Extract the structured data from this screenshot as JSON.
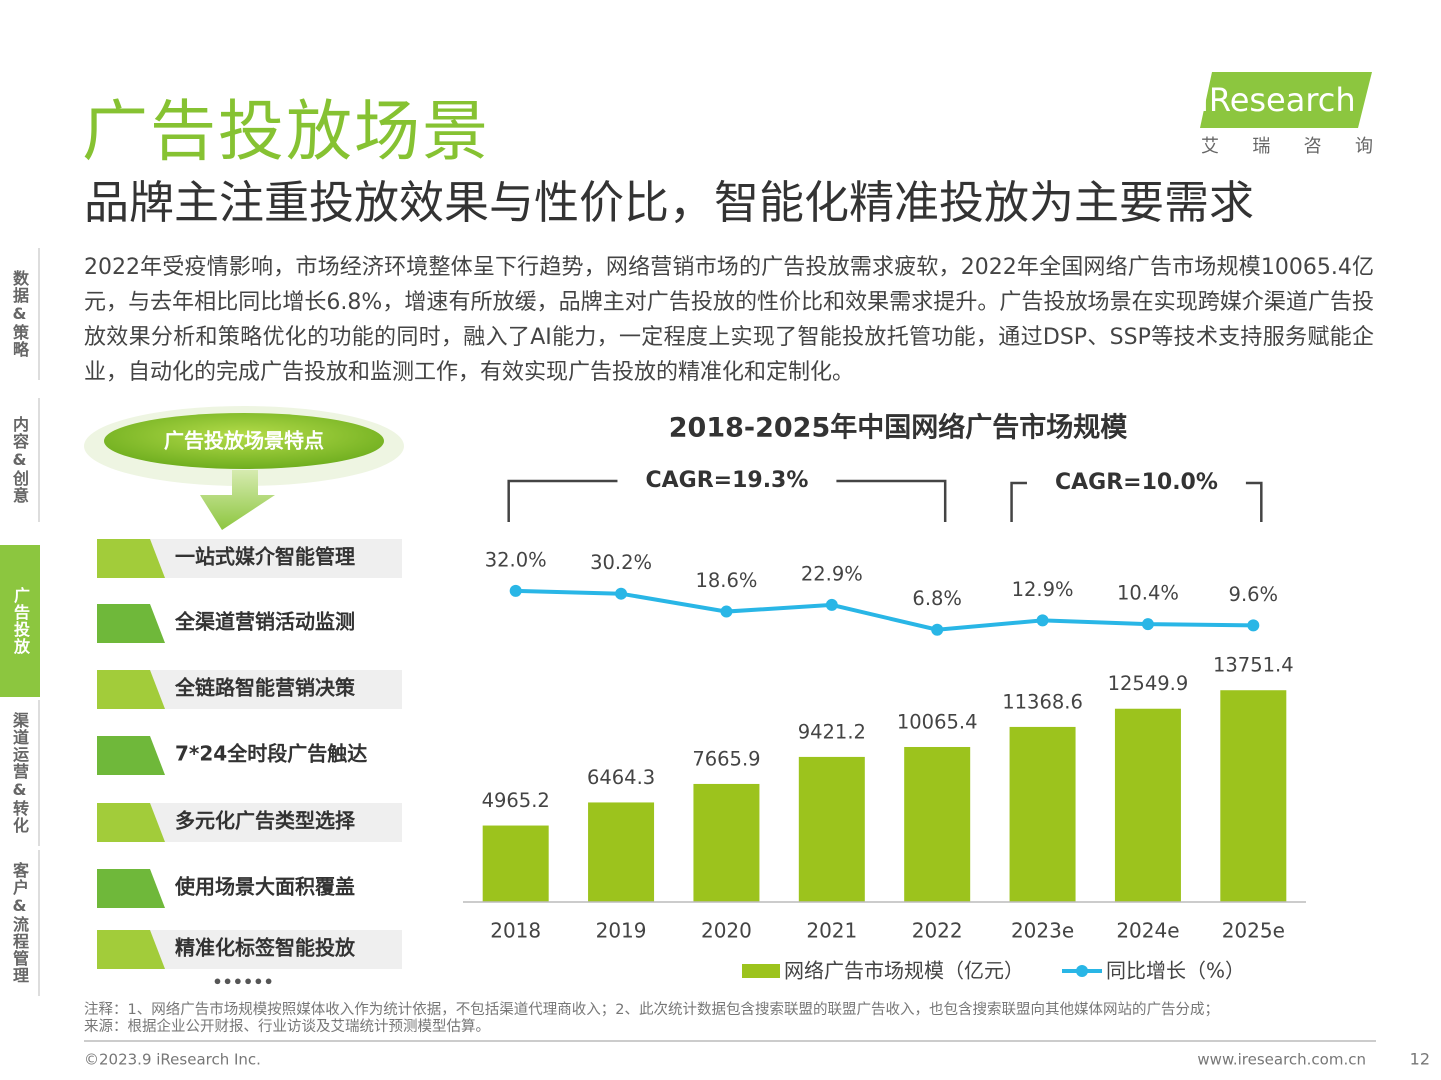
{
  "header": {
    "title": "广告投放场景",
    "subtitle": "品牌主注重投放效果与性价比，智能化精准投放为主要需求",
    "logo": "iResearch",
    "logo_cn": "艾 瑞 咨 询"
  },
  "sidebar": {
    "items": [
      "数据&策略",
      "内容&创意",
      "广告投放",
      "渠道运营&转化",
      "客户&流程管理"
    ],
    "active": 2
  },
  "body": "2022年受疫情影响，市场经济环境整体呈下行趋势，网络营销市场的广告投放需求疲软，2022年全国网络广告市场规模10065.4亿元，与去年相比同比增长6.8%，增速有所放缓，品牌主对广告投放的性价比和效果需求提升。广告投放场景在实现跨媒介渠道广告投放效果分析和策略优化的功能的同时，融入了AI能力，一定程度上实现了智能投放托管功能，通过DSP、SSP等技术支持服务赋能企业，自动化的完成广告投放和监测工作，有效实现广告投放的精准化和定制化。",
  "features": {
    "title": "广告投放场景特点",
    "items": [
      "一站式媒介智能管理",
      "全渠道营销活动监测",
      "全链路智能营销决策",
      "7*24全时段广告触达",
      "多元化广告类型选择",
      "使用场景大面积覆盖",
      "精准化标签智能投放"
    ],
    "more": "••••••"
  },
  "chart_data": {
    "type": "bar_line",
    "title": "2018-2025年中国网络广告市场规模",
    "annotations": [
      "CAGR=19.3%",
      "CAGR=10.0%"
    ],
    "categories": [
      "2018",
      "2019",
      "2020",
      "2021",
      "2022",
      "2023e",
      "2024e",
      "2025e"
    ],
    "series": [
      {
        "name": "网络广告市场规模（亿元）",
        "type": "bar",
        "color": "#9cc31d",
        "values": [
          4965.2,
          6464.3,
          7665.9,
          9421.2,
          10065.4,
          11368.6,
          12549.9,
          13751.4
        ]
      },
      {
        "name": "同比增长（%）",
        "type": "line",
        "axis": "y2",
        "color": "#29b6e6",
        "values": [
          32.0,
          30.2,
          18.6,
          22.9,
          6.8,
          12.9,
          10.4,
          9.6
        ],
        "value_labels": [
          "32.0%",
          "30.2%",
          "18.6%",
          "22.9%",
          "6.8%",
          "12.9%",
          "10.4%",
          "9.6%"
        ]
      }
    ],
    "ylim": [
      0,
      20000
    ],
    "y2lim": [
      -170,
      30
    ]
  },
  "footer": {
    "notes": [
      "注释：1、网络广告市场规模按照媒体收入作为统计依据，不包括渠道代理商收入；2、此次统计数据包含搜索联盟的联盟广告收入，也包含搜索联盟向其他媒体网站的广告分成；",
      "来源：根据企业公开财报、行业访谈及艾瑞统计预测模型估算。"
    ],
    "copyright": "©2023.9 iResearch Inc.",
    "url": "www.iresearch.com.cn",
    "page": 12
  }
}
